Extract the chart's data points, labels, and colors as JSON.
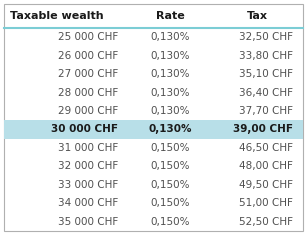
{
  "headers": [
    "Taxable wealth",
    "Rate",
    "Tax"
  ],
  "rows": [
    [
      "25 000 CHF",
      "0,130%",
      "32,50 CHF"
    ],
    [
      "26 000 CHF",
      "0,130%",
      "33,80 CHF"
    ],
    [
      "27 000 CHF",
      "0,130%",
      "35,10 CHF"
    ],
    [
      "28 000 CHF",
      "0,130%",
      "36,40 CHF"
    ],
    [
      "29 000 CHF",
      "0,130%",
      "37,70 CHF"
    ],
    [
      "30 000 CHF",
      "0,130%",
      "39,00 CHF"
    ],
    [
      "31 000 CHF",
      "0,150%",
      "46,50 CHF"
    ],
    [
      "32 000 CHF",
      "0,150%",
      "48,00 CHF"
    ],
    [
      "33 000 CHF",
      "0,150%",
      "49,50 CHF"
    ],
    [
      "34 000 CHF",
      "0,150%",
      "51,00 CHF"
    ],
    [
      "35 000 CHF",
      "0,150%",
      "52,50 CHF"
    ]
  ],
  "highlighted_row": 5,
  "highlight_color": "#b8dfe8",
  "bg_color": "#ffffff",
  "border_color": "#b0b0b0",
  "header_line_color": "#7bcdd5",
  "text_color": "#505050",
  "header_text_color": "#1a1a1a",
  "header_fontsize": 8.0,
  "data_fontsize": 7.5,
  "figsize": [
    3.07,
    2.35
  ],
  "dpi": 100
}
